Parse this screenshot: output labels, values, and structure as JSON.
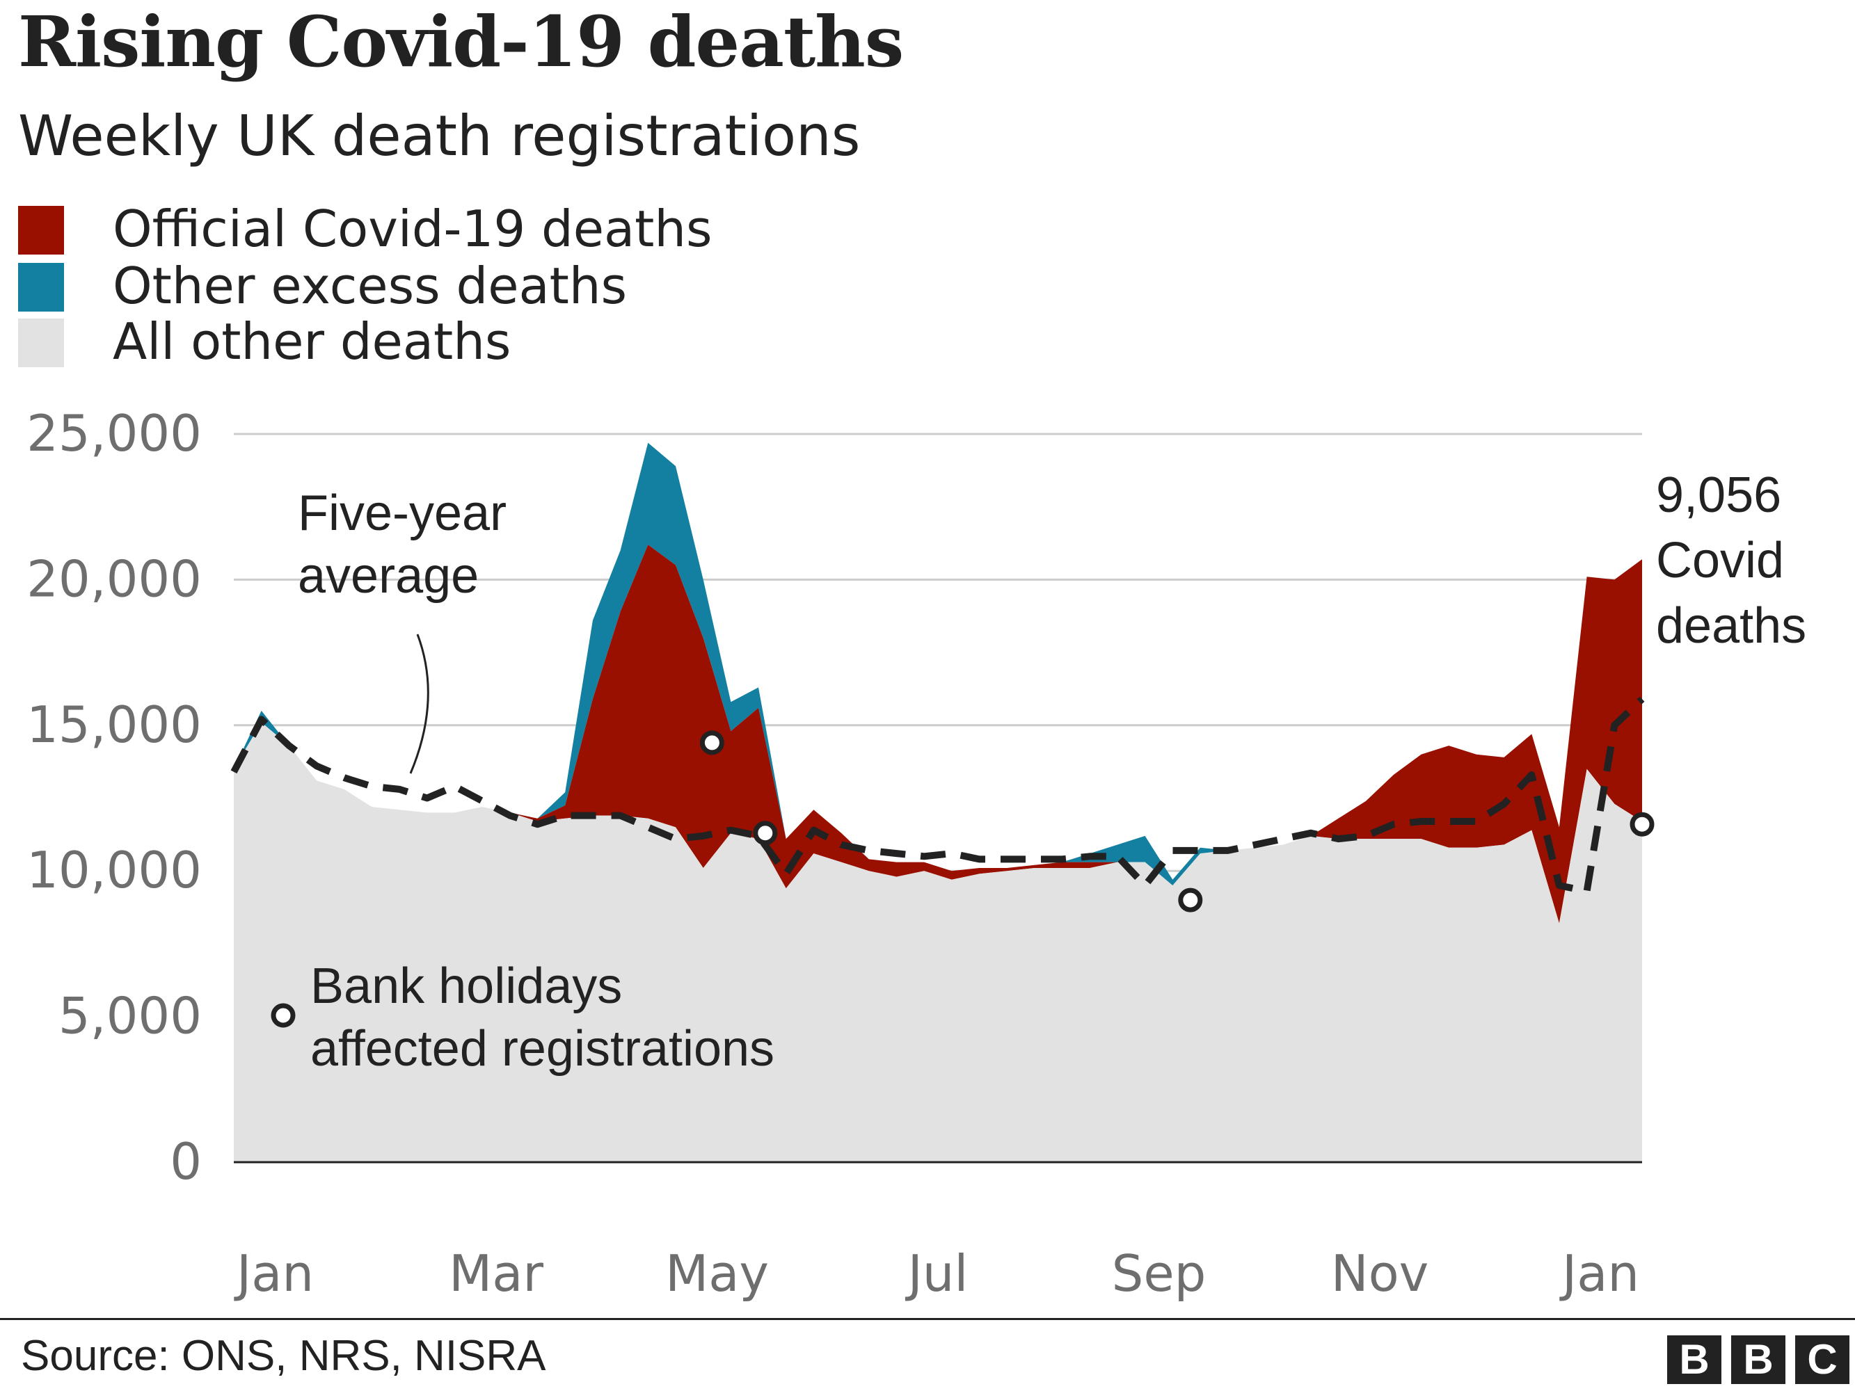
{
  "title": "Rising Covid-19 deaths",
  "subtitle": "Weekly UK death registrations",
  "legend": [
    {
      "label": "Official Covid-19 deaths",
      "color": "#990f00"
    },
    {
      "label": "Other excess deaths",
      "color": "#1380a1"
    },
    {
      "label": "All other deaths",
      "color": "#e2e2e2"
    }
  ],
  "colors": {
    "average_line": "#222222",
    "grid": "#cccccc",
    "axis": "#222222",
    "tick_label": "#6e6e6e"
  },
  "source": "Source: ONS, NRS, NISRA",
  "logo": [
    "B",
    "B",
    "C"
  ],
  "chart_data": {
    "type": "area",
    "title": "Rising Covid-19 deaths",
    "subtitle": "Weekly UK death registrations",
    "xlabel": "",
    "ylabel": "",
    "ylim": [
      0,
      25000
    ],
    "yticks": [
      0,
      5000,
      10000,
      15000,
      20000,
      25000
    ],
    "ytick_labels": [
      "0",
      "5,000",
      "10,000",
      "15,000",
      "20,000",
      "25,000"
    ],
    "xtick_labels": [
      "Jan",
      "Mar",
      "May",
      "Jul",
      "Sep",
      "Nov",
      "Jan"
    ],
    "xtick_weeks": [
      1.5,
      9.5,
      17.5,
      25.5,
      33.5,
      41.5,
      49.5
    ],
    "grid": true,
    "weeks": [
      0,
      1,
      2,
      3,
      4,
      5,
      6,
      7,
      8,
      9,
      10,
      11,
      12,
      13,
      14,
      15,
      16,
      17,
      18,
      19,
      20,
      21,
      22,
      23,
      24,
      25,
      26,
      27,
      28,
      29,
      30,
      31,
      32,
      33,
      34,
      35,
      36,
      37,
      38,
      39,
      40,
      41,
      42,
      43,
      44,
      45,
      46,
      47,
      48,
      49,
      50,
      51
    ],
    "series": [
      {
        "name": "All other deaths",
        "values": [
          13500,
          15100,
          14300,
          13100,
          12800,
          12200,
          12100,
          12000,
          12000,
          12200,
          12000,
          11700,
          11800,
          11900,
          11900,
          11800,
          11500,
          10100,
          11300,
          11100,
          9400,
          10600,
          10300,
          10000,
          9800,
          10000,
          9700,
          9900,
          10000,
          10100,
          10100,
          10100,
          10300,
          10300,
          9500,
          10600,
          10700,
          10800,
          10900,
          11200,
          11100,
          11100,
          11100,
          11100,
          10800,
          10800,
          10900,
          11400,
          8200,
          13500,
          12300,
          11700
        ]
      },
      {
        "name": "Official Covid-19 deaths",
        "values": [
          0,
          0,
          0,
          0,
          0,
          0,
          0,
          0,
          0,
          0,
          0,
          100,
          450,
          4000,
          7000,
          9400,
          9000,
          7900,
          3500,
          4500,
          1700,
          1500,
          1000,
          400,
          500,
          300,
          300,
          200,
          100,
          100,
          200,
          200,
          0,
          0,
          0,
          0,
          0,
          0,
          0,
          0,
          700,
          1300,
          2200,
          2900,
          3500,
          3200,
          3000,
          3300,
          3300,
          6600,
          7700,
          9000
        ]
      },
      {
        "name": "Other excess deaths",
        "values": [
          0,
          400,
          0,
          0,
          0,
          0,
          0,
          0,
          0,
          0,
          0,
          0,
          450,
          2700,
          2100,
          3500,
          3400,
          2000,
          1000,
          700,
          0,
          0,
          0,
          0,
          0,
          0,
          0,
          0,
          0,
          0,
          0,
          300,
          600,
          900,
          200,
          200,
          0,
          0,
          0,
          0,
          0,
          0,
          0,
          0,
          0,
          0,
          0,
          0,
          0,
          0,
          0,
          0
        ]
      },
      {
        "name": "Five-year average",
        "values": [
          13400,
          15200,
          14300,
          13600,
          13200,
          12900,
          12800,
          12500,
          12900,
          12400,
          11900,
          11600,
          11900,
          11900,
          11900,
          11500,
          11100,
          11200,
          11400,
          11200,
          9900,
          11400,
          10900,
          10700,
          10600,
          10500,
          10600,
          10400,
          10400,
          10400,
          10400,
          10500,
          10500,
          9500,
          10700,
          10700,
          10700,
          10900,
          11100,
          11300,
          11100,
          11200,
          11600,
          11700,
          11700,
          11700,
          12300,
          13300,
          9500,
          9300,
          15000,
          15900
        ]
      }
    ],
    "bank_holiday_weeks": [
      18,
      20,
      36,
      53
    ],
    "bank_holiday_values": [
      14400,
      11300,
      9000,
      11600
    ],
    "annotations": {
      "five_year": [
        "Five-year",
        "average"
      ],
      "bank_holidays": [
        "Bank holidays",
        "affected registrations"
      ],
      "latest": [
        "9,056",
        "Covid",
        "deaths"
      ]
    }
  }
}
